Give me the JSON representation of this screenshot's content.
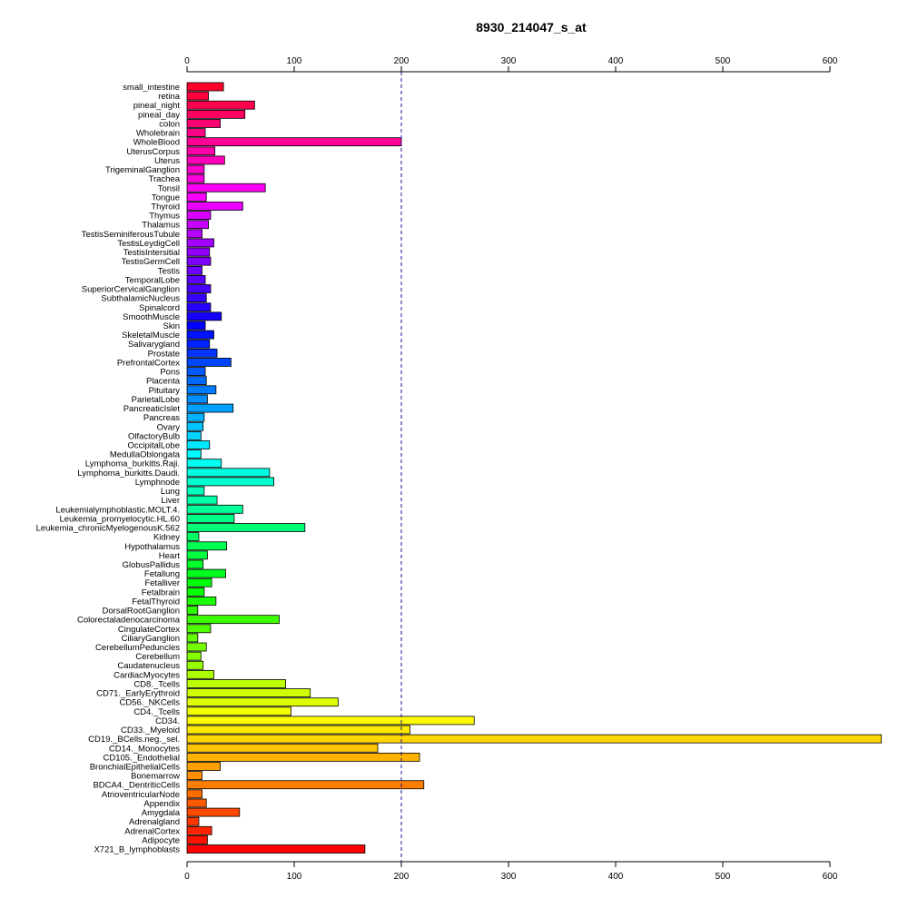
{
  "chart_data": {
    "type": "bar",
    "orientation": "horizontal",
    "title": "8930_214047_s_at",
    "xlim": [
      0,
      650
    ],
    "xticks": [
      0,
      100,
      200,
      300,
      400,
      500,
      600
    ],
    "reference_line": 200,
    "categories": [
      "small_intestine",
      "retina",
      "pineal_night",
      "pineal_day",
      "colon",
      "Wholebrain",
      "WholeBlood",
      "UterusCorpus",
      "Uterus",
      "TrigeminalGanglion",
      "Trachea",
      "Tonsil",
      "Tongue",
      "Thyroid",
      "Thymus",
      "Thalamus",
      "TestisSeminiferousTubule",
      "TestisLeydigCell",
      "TestisIntersitial",
      "TestisGermCell",
      "Testis",
      "TemporalLobe",
      "SuperiorCervicalGanglion",
      "SubthalamicNucleus",
      "Spinalcord",
      "SmoothMuscle",
      "Skin",
      "SkeletalMuscle",
      "Salivarygland",
      "Prostate",
      "PrefrontalCortex",
      "Pons",
      "Placenta",
      "Pituitary",
      "ParietalLobe",
      "PancreaticIslet",
      "Pancreas",
      "Ovary",
      "OlfactoryBulb",
      "OccipitalLobe",
      "MedullaOblongata",
      "Lymphoma_burkitts.Raji.",
      "Lymphoma_burkitts.Daudi.",
      "Lymphnode",
      "Lung",
      "Liver",
      "Leukemialymphoblastic.MOLT.4.",
      "Leukemia_promyelocytic.HL.60",
      "Leukemia_chronicMyelogenousK.562",
      "Kidney",
      "Hypothalamus",
      "Heart",
      "GlobusPallidus",
      "Fetallung",
      "Fetalliver",
      "Fetalbrain",
      "FetalThyroid",
      "DorsalRootGanglion",
      "Colorectaladenocarcinoma",
      "CingulateCortex",
      "CiliaryGanglion",
      "CerebellumPeduncles",
      "Cerebellum",
      "Caudatenucleus",
      "CardiacMyocytes",
      "CD8._Tcells",
      "CD71._EarlyErythroid",
      "CD56._NKCells",
      "CD4._Tcells",
      "CD34.",
      "CD33._Myeloid",
      "CD19._BCells.neg._sel.",
      "CD14._Monocytes",
      "CD105._Endothelial",
      "BronchialEpithelialCells",
      "Bonemarrow",
      "BDCA4._DentriticCells",
      "AtrioventricularNode",
      "Appendix",
      "Amygdala",
      "Adrenalgland",
      "AdrenalCortex",
      "Adipocyte",
      "X721_B_lymphoblasts"
    ],
    "values": [
      34,
      20,
      63,
      54,
      31,
      17,
      200,
      26,
      35,
      16,
      16,
      73,
      18,
      52,
      22,
      20,
      14,
      25,
      21,
      22,
      14,
      17,
      22,
      18,
      22,
      32,
      17,
      25,
      21,
      28,
      41,
      17,
      18,
      27,
      19,
      43,
      16,
      15,
      13,
      21,
      13,
      32,
      77,
      81,
      16,
      28,
      52,
      44,
      110,
      11,
      37,
      19,
      15,
      36,
      23,
      16,
      27,
      10,
      86,
      22,
      10,
      18,
      13,
      15,
      25,
      92,
      115,
      141,
      97,
      268,
      208,
      648,
      178,
      217,
      31,
      14,
      221,
      14,
      18,
      49,
      11,
      23,
      19,
      166
    ]
  }
}
